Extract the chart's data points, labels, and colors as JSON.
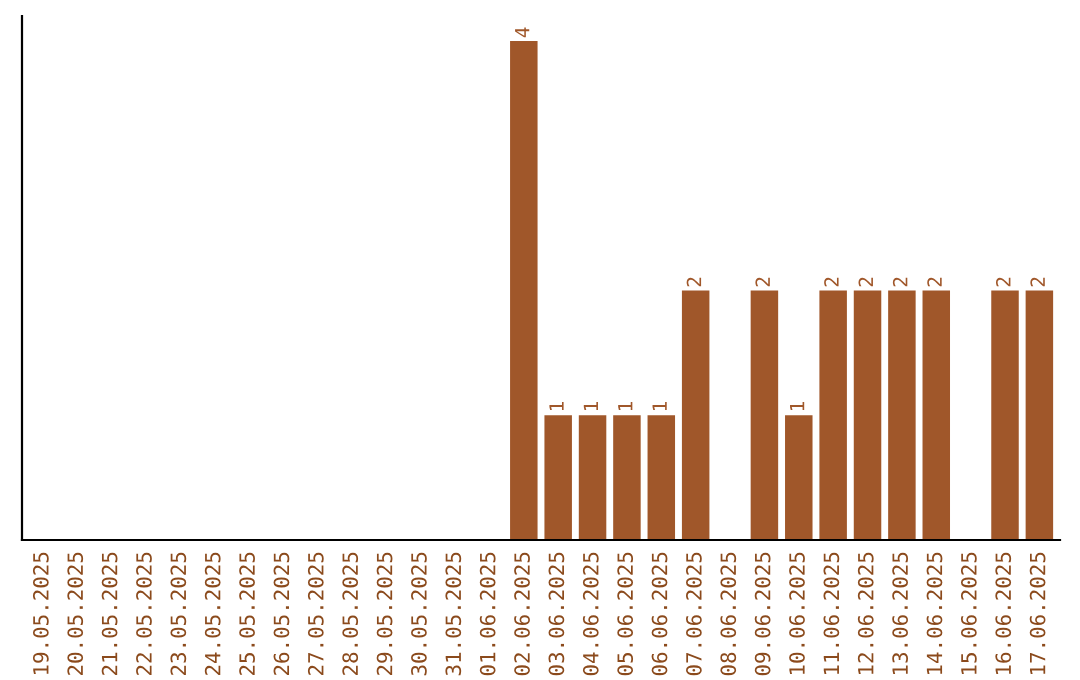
{
  "chart_data": {
    "type": "bar",
    "categories": [
      "19.05.2025",
      "20.05.2025",
      "21.05.2025",
      "22.05.2025",
      "23.05.2025",
      "24.05.2025",
      "25.05.2025",
      "26.05.2025",
      "27.05.2025",
      "28.05.2025",
      "29.05.2025",
      "30.05.2025",
      "31.05.2025",
      "01.06.2025",
      "02.06.2025",
      "03.06.2025",
      "04.06.2025",
      "05.06.2025",
      "06.06.2025",
      "07.06.2025",
      "08.06.2025",
      "09.06.2025",
      "10.06.2025",
      "11.06.2025",
      "12.06.2025",
      "13.06.2025",
      "14.06.2025",
      "15.06.2025",
      "16.06.2025",
      "17.06.2025"
    ],
    "values": [
      null,
      null,
      null,
      null,
      null,
      null,
      null,
      null,
      null,
      null,
      null,
      null,
      null,
      null,
      4,
      1,
      1,
      1,
      1,
      2,
      null,
      2,
      1,
      2,
      2,
      2,
      2,
      null,
      2,
      2
    ],
    "data_labels": true,
    "color": "#a0572a",
    "grid": false,
    "legend": false
  }
}
